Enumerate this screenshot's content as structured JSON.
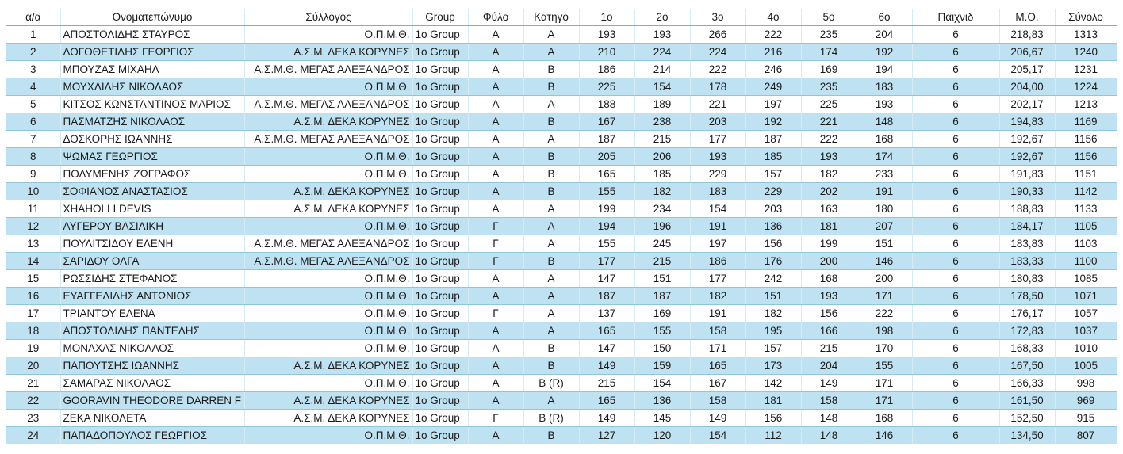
{
  "table": {
    "header": [
      "α/α",
      "Ονοματεπώνυμο",
      "Σύλλογος",
      "Group",
      "Φύλο",
      "Κατηγο",
      "1ο",
      "2ο",
      "3ο",
      "4ο",
      "5ο",
      "6ο",
      "Παιχνιδ",
      "Μ.Ο.",
      "Σύνολο"
    ],
    "rows": [
      [
        "1",
        "ΑΠΟΣΤΟΛΙΔΗΣ ΣΤΑΥΡΟΣ",
        "Ο.Π.Μ.Θ.",
        "1ο Group",
        "Α",
        "Α",
        "193",
        "193",
        "266",
        "222",
        "235",
        "204",
        "6",
        "218,83",
        "1313"
      ],
      [
        "2",
        "ΛΟΓΟΘΕΤΙΔΗΣ ΓΕΩΡΓΙΟΣ",
        "Α.Σ.Μ. ΔΕΚΑ ΚΟΡΥΝΕΣ",
        "1ο Group",
        "Α",
        "Α",
        "210",
        "224",
        "224",
        "216",
        "174",
        "192",
        "6",
        "206,67",
        "1240"
      ],
      [
        "3",
        "ΜΠΟΥΖΑΣ ΜΙΧΑΗΛ",
        "Α.Σ.Μ.Θ. ΜΕΓΑΣ ΑΛΕΞΑΝΔΡΟΣ",
        "1ο Group",
        "Α",
        "Β",
        "186",
        "214",
        "222",
        "246",
        "169",
        "194",
        "6",
        "205,17",
        "1231"
      ],
      [
        "4",
        "ΜΟΥΧΛΙΔΗΣ ΝΙΚΟΛΑΟΣ",
        "Ο.Π.Μ.Θ.",
        "1ο Group",
        "Α",
        "Β",
        "225",
        "154",
        "178",
        "249",
        "235",
        "183",
        "6",
        "204,00",
        "1224"
      ],
      [
        "5",
        "ΚΙΤΣΟΣ ΚΩΝΣΤΑΝΤΙΝΟΣ ΜΑΡΙΟΣ",
        "Α.Σ.Μ.Θ. ΜΕΓΑΣ ΑΛΕΞΑΝΔΡΟΣ",
        "1ο Group",
        "Α",
        "Α",
        "188",
        "189",
        "221",
        "197",
        "225",
        "193",
        "6",
        "202,17",
        "1213"
      ],
      [
        "6",
        "ΠΑΣΜΑΤΖΗΣ ΝΙΚΟΛΑΟΣ",
        "Α.Σ.Μ. ΔΕΚΑ ΚΟΡΥΝΕΣ",
        "1ο Group",
        "Α",
        "Β",
        "167",
        "238",
        "203",
        "192",
        "221",
        "148",
        "6",
        "194,83",
        "1169"
      ],
      [
        "7",
        "ΔΟΣΚΟΡΗΣ ΙΩΑΝΝΗΣ",
        "Α.Σ.Μ.Θ. ΜΕΓΑΣ ΑΛΕΞΑΝΔΡΟΣ",
        "1ο Group",
        "Α",
        "Α",
        "187",
        "215",
        "177",
        "187",
        "222",
        "168",
        "6",
        "192,67",
        "1156"
      ],
      [
        "8",
        "ΨΩΜΑΣ ΓΕΩΡΓΙΟΣ",
        "Ο.Π.Μ.Θ.",
        "1ο Group",
        "Α",
        "Β",
        "205",
        "206",
        "193",
        "185",
        "193",
        "174",
        "6",
        "192,67",
        "1156"
      ],
      [
        "9",
        "ΠΟΛΥΜΕΝΗΣ ΖΩΓΡΑΦΟΣ",
        "Ο.Π.Μ.Θ.",
        "1ο Group",
        "Α",
        "Β",
        "165",
        "185",
        "229",
        "157",
        "182",
        "233",
        "6",
        "191,83",
        "1151"
      ],
      [
        "10",
        "ΣΟΦΙΑΝΟΣ ΑΝΑΣΤΑΣΙΟΣ",
        "Α.Σ.Μ. ΔΕΚΑ ΚΟΡΥΝΕΣ",
        "1ο Group",
        "Α",
        "Β",
        "155",
        "182",
        "183",
        "229",
        "202",
        "191",
        "6",
        "190,33",
        "1142"
      ],
      [
        "11",
        "XHAHOLLI DEVIS",
        "Α.Σ.Μ. ΔΕΚΑ ΚΟΡΥΝΕΣ",
        "1ο Group",
        "Α",
        "Α",
        "199",
        "234",
        "154",
        "203",
        "163",
        "180",
        "6",
        "188,83",
        "1133"
      ],
      [
        "12",
        "ΑΥΓΕΡΟΥ ΒΑΣΙΛΙΚΗ",
        "Ο.Π.Μ.Θ.",
        "1ο Group",
        "Γ",
        "Α",
        "194",
        "196",
        "191",
        "136",
        "181",
        "207",
        "6",
        "184,17",
        "1105"
      ],
      [
        "13",
        "ΠΟΥΛΙΤΣΙΔΟΥ ΕΛΕΝΗ",
        "Α.Σ.Μ.Θ. ΜΕΓΑΣ ΑΛΕΞΑΝΔΡΟΣ",
        "1ο Group",
        "Γ",
        "Α",
        "155",
        "245",
        "197",
        "156",
        "199",
        "151",
        "6",
        "183,83",
        "1103"
      ],
      [
        "14",
        "ΣΑΡΙΔΟΥ ΟΛΓΑ",
        "Α.Σ.Μ.Θ. ΜΕΓΑΣ ΑΛΕΞΑΝΔΡΟΣ",
        "1ο Group",
        "Γ",
        "Β",
        "177",
        "215",
        "186",
        "176",
        "200",
        "146",
        "6",
        "183,33",
        "1100"
      ],
      [
        "15",
        "ΡΩΣΣΙΔΗΣ ΣΤΕΦΑΝΟΣ",
        "Ο.Π.Μ.Θ.",
        "1ο Group",
        "Α",
        "Α",
        "147",
        "151",
        "177",
        "242",
        "168",
        "200",
        "6",
        "180,83",
        "1085"
      ],
      [
        "16",
        "ΕΥΑΓΓΕΛΙΔΗΣ ΑΝΤΩΝΙΟΣ",
        "Ο.Π.Μ.Θ.",
        "1ο Group",
        "Α",
        "Α",
        "187",
        "187",
        "182",
        "151",
        "193",
        "171",
        "6",
        "178,50",
        "1071"
      ],
      [
        "17",
        "ΤΡΙΑΝΤΟΥ ΕΛΕΝΑ",
        "Ο.Π.Μ.Θ.",
        "1ο Group",
        "Γ",
        "Α",
        "137",
        "169",
        "191",
        "182",
        "156",
        "222",
        "6",
        "176,17",
        "1057"
      ],
      [
        "18",
        "ΑΠΟΣΤΟΛΙΔΗΣ ΠΑΝΤΕΛΗΣ",
        "Ο.Π.Μ.Θ.",
        "1ο Group",
        "Α",
        "Α",
        "165",
        "155",
        "158",
        "195",
        "166",
        "198",
        "6",
        "172,83",
        "1037"
      ],
      [
        "19",
        "ΜΟΝΑΧΑΣ ΝΙΚΟΛΑΟΣ",
        "Ο.Π.Μ.Θ.",
        "1ο Group",
        "Α",
        "Β",
        "147",
        "150",
        "171",
        "157",
        "215",
        "170",
        "6",
        "168,33",
        "1010"
      ],
      [
        "20",
        "ΠΑΠΟΥΤΣΗΣ ΙΩΑΝΝΗΣ",
        "Α.Σ.Μ. ΔΕΚΑ ΚΟΡΥΝΕΣ",
        "1ο Group",
        "Α",
        "Β",
        "149",
        "159",
        "165",
        "173",
        "204",
        "155",
        "6",
        "167,50",
        "1005"
      ],
      [
        "21",
        "ΣΑΜΑΡΑΣ ΝΙΚΟΛΑΟΣ",
        "Ο.Π.Μ.Θ.",
        "1ο Group",
        "Α",
        "Β (R)",
        "215",
        "154",
        "167",
        "142",
        "149",
        "171",
        "6",
        "166,33",
        "998"
      ],
      [
        "22",
        "GOORAVIN THEODORE DARREN F",
        "Α.Σ.Μ. ΔΕΚΑ ΚΟΡΥΝΕΣ",
        "1ο Group",
        "Α",
        "Α",
        "165",
        "136",
        "158",
        "181",
        "158",
        "171",
        "6",
        "161,50",
        "969"
      ],
      [
        "23",
        "ΖΕΚΑ ΝΙΚΟΛΕΤΑ",
        "Α.Σ.Μ. ΔΕΚΑ ΚΟΡΥΝΕΣ",
        "1ο Group",
        "Γ",
        "Β (R)",
        "149",
        "145",
        "149",
        "156",
        "148",
        "168",
        "6",
        "152,50",
        "915"
      ],
      [
        "24",
        "ΠΑΠΑΔΟΠΟΥΛΟΣ ΓΕΩΡΓΙΟΣ",
        "Ο.Π.Μ.Θ.",
        "1ο Group",
        "Α",
        "Β",
        "127",
        "120",
        "154",
        "112",
        "148",
        "146",
        "6",
        "134,50",
        "807"
      ]
    ]
  }
}
